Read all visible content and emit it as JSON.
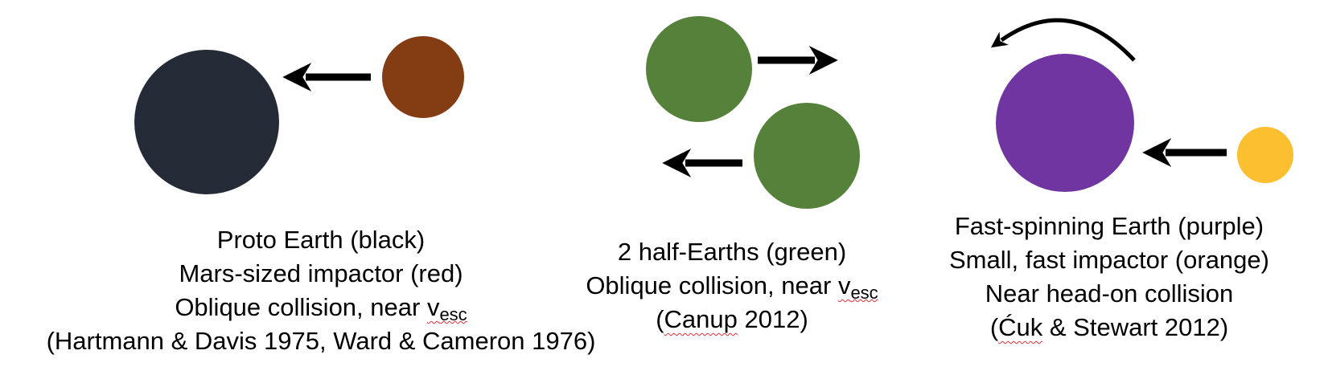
{
  "palette": {
    "proto_earth": "#252b36",
    "mars_impactor": "#843c13",
    "half_earth": "#56813a",
    "fast_spinning_earth": "#7035a0",
    "small_impactor": "#fbbf2f",
    "arrow": "#000000"
  },
  "scenario_giant_impact": {
    "line1": "Proto Earth (black)",
    "line2": "Mars-sized impactor (red)",
    "line3_prefix": "Oblique collision, near ",
    "velocity_symbol": "v",
    "velocity_subscript": "esc",
    "line4": "(Hartmann & Davis 1975, Ward & Cameron 1976)"
  },
  "scenario_half_earths": {
    "line1": "2 half-Earths (green)",
    "line2_prefix": "Oblique collision, near ",
    "velocity_symbol": "v",
    "velocity_subscript": "esc",
    "line3_open": "(",
    "line3_author": "Canup",
    "line3_rest": " 2012)"
  },
  "scenario_fast_spin": {
    "line1": "Fast-spinning Earth (purple)",
    "line2": "Small, fast impactor (orange)",
    "line3": "Near head-on collision",
    "line4_open": "(",
    "line4_author": "Ćuk",
    "line4_rest": " & Stewart 2012)"
  }
}
